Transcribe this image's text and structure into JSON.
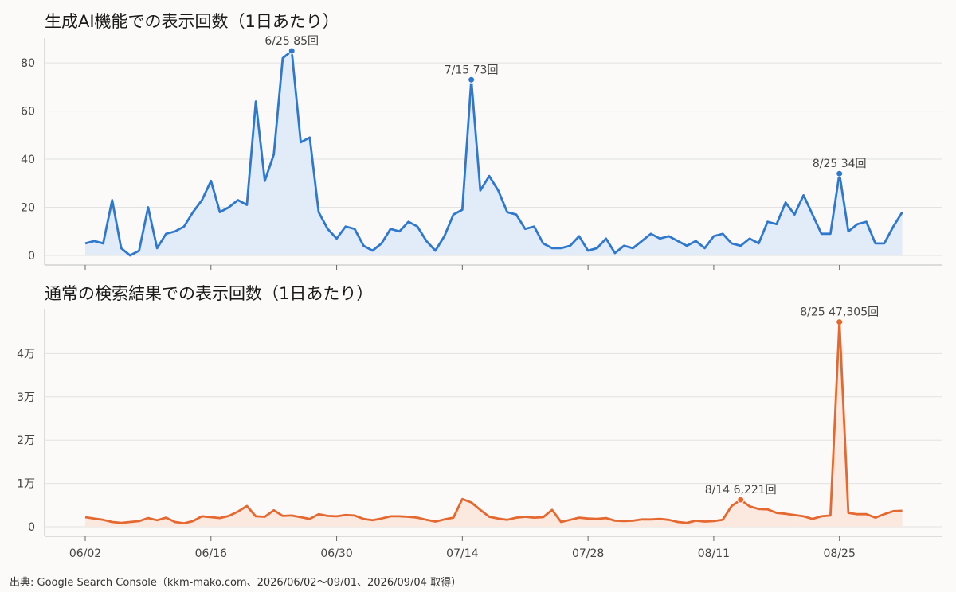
{
  "chart_data": [
    {
      "type": "area",
      "title": "生成AI機能での表示回数（1日あたり）",
      "color": "#2f78cc",
      "fill": "#e1ecf8",
      "ylim": [
        0,
        85
      ],
      "yticks": [
        {
          "v": 0,
          "label": "0"
        },
        {
          "v": 20,
          "label": "20"
        },
        {
          "v": 40,
          "label": "40"
        },
        {
          "v": 60,
          "label": "60"
        },
        {
          "v": 80,
          "label": "80"
        }
      ],
      "x_start": "06/02",
      "values": [
        5,
        6,
        5,
        23,
        3,
        0,
        2,
        20,
        3,
        9,
        10,
        12,
        18,
        23,
        31,
        18,
        20,
        23,
        21,
        64,
        31,
        42,
        82,
        85,
        47,
        49,
        18,
        11,
        7,
        12,
        11,
        4,
        2,
        5,
        11,
        10,
        14,
        12,
        6,
        2,
        8,
        17,
        19,
        73,
        27,
        33,
        27,
        18,
        17,
        11,
        12,
        5,
        3,
        3,
        4,
        8,
        2,
        3,
        7,
        1,
        4,
        3,
        6,
        9,
        7,
        8,
        6,
        4,
        6,
        3,
        8,
        9,
        5,
        4,
        7,
        5,
        14,
        13,
        22,
        17,
        25,
        17,
        9,
        9,
        34,
        10,
        13,
        14,
        5,
        5,
        12,
        18
      ],
      "annotations": [
        {
          "x": "06/25",
          "y": 85,
          "label": "6/25 85回"
        },
        {
          "x": "07/15",
          "y": 73,
          "label": "7/15 73回"
        },
        {
          "x": "08/25",
          "y": 34,
          "label": "8/25 34回"
        }
      ]
    },
    {
      "type": "area",
      "title": "通常の検索結果での表示回数（1日あたり）",
      "color": "#e4682f",
      "fill": "#fbe8de",
      "ylim": [
        0,
        50000
      ],
      "yticks": [
        {
          "v": 0,
          "label": "0"
        },
        {
          "v": 10000,
          "label": "1万"
        },
        {
          "v": 20000,
          "label": "2万"
        },
        {
          "v": 30000,
          "label": "3万"
        },
        {
          "v": 40000,
          "label": "4万"
        }
      ],
      "x_start": "06/02",
      "values": [
        2200,
        1900,
        1600,
        1100,
        900,
        1100,
        1300,
        2000,
        1500,
        2100,
        1100,
        800,
        1300,
        2400,
        2200,
        2000,
        2500,
        3500,
        4800,
        2400,
        2300,
        3800,
        2500,
        2600,
        2200,
        1800,
        2900,
        2500,
        2400,
        2700,
        2600,
        1800,
        1500,
        1900,
        2400,
        2400,
        2300,
        2100,
        1600,
        1200,
        1700,
        2100,
        6400,
        5600,
        3900,
        2300,
        1900,
        1600,
        2100,
        2300,
        2100,
        2200,
        3900,
        1100,
        1600,
        2100,
        1900,
        1800,
        2000,
        1400,
        1300,
        1400,
        1700,
        1700,
        1800,
        1600,
        1100,
        900,
        1400,
        1200,
        1300,
        1600,
        4800,
        6221,
        4700,
        4100,
        4000,
        3200,
        3000,
        2700,
        2400,
        1800,
        2400,
        2600,
        47305,
        3200,
        2900,
        2900,
        2100,
        2900,
        3600,
        3700
      ],
      "annotations": [
        {
          "x": "08/14",
          "y": 6221,
          "label": "8/14 6,221回"
        },
        {
          "x": "08/25",
          "y": 47305,
          "label": "8/25 47,305回"
        }
      ]
    }
  ],
  "x_ticks": [
    "06/02",
    "06/16",
    "06/30",
    "07/14",
    "07/28",
    "08/11",
    "08/25"
  ],
  "source": "出典: Google Search Console（kkm-mako.com、2026/06/02〜09/01、2026/09/04 取得）"
}
